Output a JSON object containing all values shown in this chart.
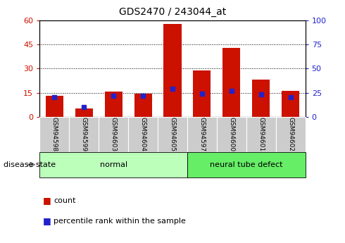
{
  "title": "GDS2470 / 243044_at",
  "samples": [
    "GSM94598",
    "GSM94599",
    "GSM94603",
    "GSM94604",
    "GSM94605",
    "GSM94597",
    "GSM94600",
    "GSM94601",
    "GSM94602"
  ],
  "count_values": [
    13.0,
    5.0,
    15.5,
    14.5,
    58.0,
    29.0,
    43.0,
    23.0,
    16.0
  ],
  "percentile_values": [
    20.0,
    10.0,
    22.0,
    22.0,
    29.0,
    24.0,
    27.0,
    23.0,
    20.0
  ],
  "left_ylim": [
    0,
    60
  ],
  "right_ylim": [
    0,
    100
  ],
  "left_yticks": [
    0,
    15,
    30,
    45,
    60
  ],
  "right_yticks": [
    0,
    25,
    50,
    75,
    100
  ],
  "bar_color": "#CC1100",
  "blue_color": "#2222CC",
  "bar_width": 0.6,
  "groups": [
    {
      "label": "normal",
      "indices": [
        0,
        1,
        2,
        3,
        4
      ],
      "color": "#BBFFBB"
    },
    {
      "label": "neural tube defect",
      "indices": [
        5,
        6,
        7,
        8
      ],
      "color": "#66EE66"
    }
  ],
  "disease_state_label": "disease state",
  "legend_count": "count",
  "legend_percentile": "percentile rank within the sample",
  "background_color": "#FFFFFF",
  "tick_label_bg": "#CCCCCC"
}
